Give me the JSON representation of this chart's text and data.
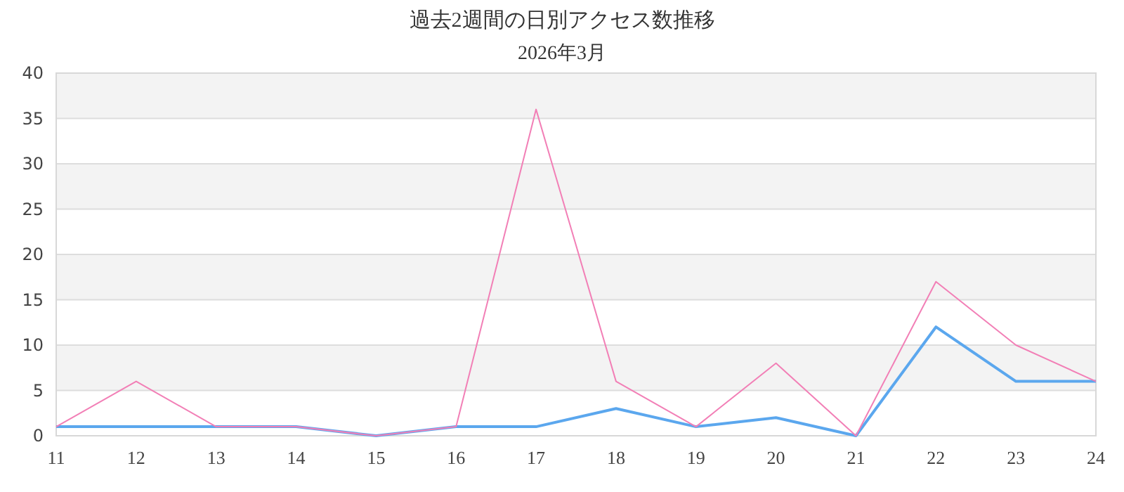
{
  "chart_data": {
    "type": "line",
    "title": "過去2週間の日別アクセス数推移",
    "subtitle": "2026年3月",
    "categories": [
      "11",
      "12",
      "13",
      "14",
      "15",
      "16",
      "17",
      "18",
      "19",
      "20",
      "21",
      "22",
      "23",
      "24"
    ],
    "series": [
      {
        "color": "#5ba7ee",
        "values": [
          1,
          1,
          1,
          1,
          0,
          1,
          1,
          3,
          1,
          2,
          0,
          12,
          6,
          6
        ]
      },
      {
        "color": "#f27fb6",
        "values": [
          1,
          6,
          1,
          1,
          0,
          1,
          36,
          6,
          1,
          8,
          0,
          17,
          10,
          6
        ]
      }
    ],
    "ylim": [
      0,
      40
    ],
    "yticks": [
      0,
      5,
      10,
      15,
      20,
      25,
      30,
      35,
      40
    ],
    "grid": "y",
    "marker": "none",
    "line_style": "solid"
  }
}
